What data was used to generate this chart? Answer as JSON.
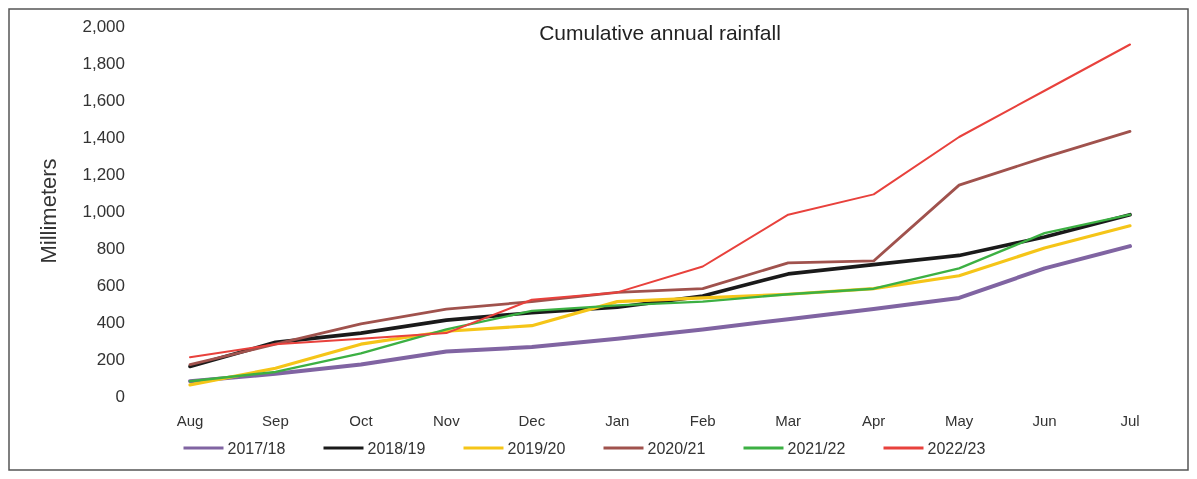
{
  "chart_data": {
    "type": "line",
    "title": "Cumulative annual rainfall",
    "ylabel": "Millimeters",
    "categories": [
      "Aug",
      "Sep",
      "Oct",
      "Nov",
      "Dec",
      "Jan",
      "Feb",
      "Mar",
      "Apr",
      "May",
      "Jun",
      "Jul"
    ],
    "series": [
      {
        "name": "2017/18",
        "color": "#8064a2",
        "values": [
          80,
          120,
          170,
          240,
          265,
          310,
          360,
          415,
          470,
          530,
          690,
          810
        ]
      },
      {
        "name": "2018/19",
        "color": "#1a1a1a",
        "values": [
          160,
          290,
          340,
          410,
          450,
          480,
          540,
          660,
          710,
          760,
          860,
          980
        ]
      },
      {
        "name": "2019/20",
        "color": "#f5c518",
        "values": [
          60,
          150,
          280,
          350,
          380,
          510,
          530,
          550,
          580,
          650,
          800,
          920
        ]
      },
      {
        "name": "2020/21",
        "color": "#a0524d",
        "values": [
          170,
          280,
          390,
          470,
          510,
          560,
          580,
          720,
          730,
          1140,
          1290,
          1430
        ]
      },
      {
        "name": "2021/22",
        "color": "#3cb043",
        "values": [
          80,
          130,
          230,
          360,
          460,
          490,
          510,
          550,
          580,
          690,
          880,
          980
        ]
      },
      {
        "name": "2022/23",
        "color": "#e8413c",
        "values": [
          210,
          280,
          310,
          340,
          520,
          560,
          700,
          980,
          1090,
          1400,
          1650,
          1900
        ]
      }
    ],
    "ylim": [
      0,
      2000
    ],
    "yticks": [
      {
        "value": 0,
        "label": "0"
      },
      {
        "value": 200,
        "label": "200"
      },
      {
        "value": 400,
        "label": "400"
      },
      {
        "value": 600,
        "label": "600"
      },
      {
        "value": 800,
        "label": "800"
      },
      {
        "value": 1000,
        "label": "1,000"
      },
      {
        "value": 1200,
        "label": "1,200"
      },
      {
        "value": 1400,
        "label": "1,400"
      },
      {
        "value": 1600,
        "label": "1,600"
      },
      {
        "value": 1800,
        "label": "1,800"
      },
      {
        "value": 2000,
        "label": "2,000"
      }
    ],
    "grid": false,
    "legend": "bottom",
    "marker": "none",
    "line_style": "solid"
  }
}
